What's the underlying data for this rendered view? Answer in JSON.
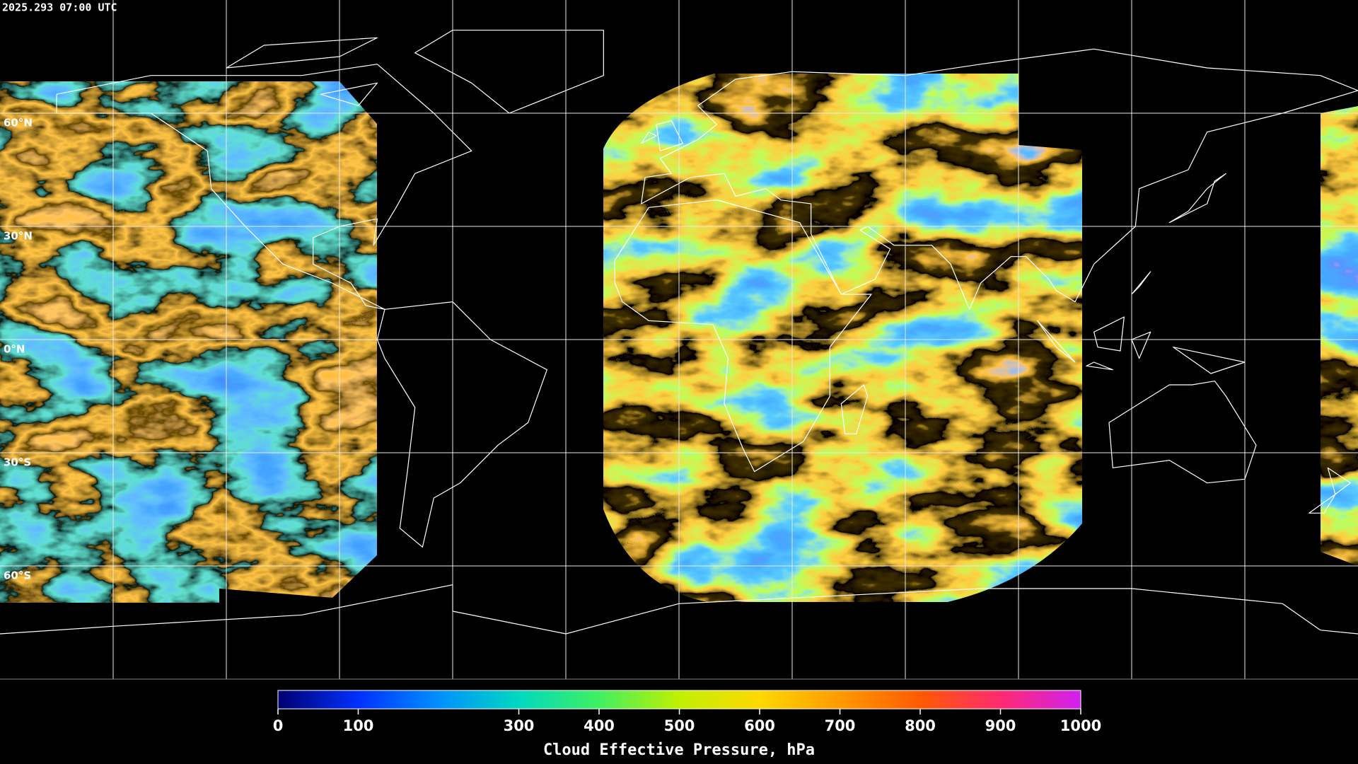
{
  "timestamp": "2025.293 07:00 UTC",
  "latitude_labels": [
    "60°N",
    "30°N",
    "0°N",
    "30°S",
    "60°S"
  ],
  "chart_data": {
    "type": "colorbar",
    "title": "Cloud Effective Pressure, hPa",
    "xlim": [
      0,
      1000
    ],
    "xticks": [
      0,
      100,
      300,
      400,
      500,
      600,
      700,
      800,
      900,
      1000
    ],
    "colormap": [
      "#000070",
      "#0030ff",
      "#0090ff",
      "#00d8c0",
      "#40f060",
      "#c0f000",
      "#ffd800",
      "#ff9a00",
      "#ff5a00",
      "#ff2a70",
      "#d020f0"
    ]
  }
}
